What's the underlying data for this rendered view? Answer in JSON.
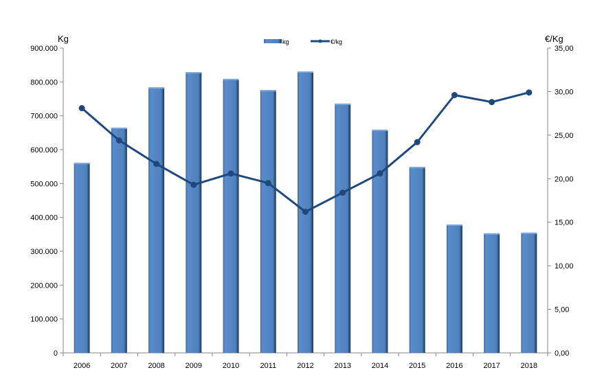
{
  "chart_data": {
    "type": "bar+line",
    "categories": [
      "2006",
      "2007",
      "2008",
      "2009",
      "2010",
      "2011",
      "2012",
      "2013",
      "2014",
      "2015",
      "2016",
      "2017",
      "2018"
    ],
    "series": [
      {
        "name": "kg",
        "type": "bar",
        "axis": "left",
        "color": "#4f81bd",
        "values": [
          561000,
          665000,
          784000,
          829000,
          809000,
          776000,
          831000,
          736000,
          659000,
          549000,
          379000,
          353000,
          355000
        ]
      },
      {
        "name": "€/kg",
        "type": "line",
        "axis": "right",
        "color": "#1f497d",
        "values": [
          28.1,
          24.4,
          21.7,
          19.3,
          20.6,
          19.5,
          16.2,
          18.4,
          20.6,
          24.2,
          29.6,
          28.8,
          29.9
        ]
      }
    ],
    "y_left": {
      "label": "Kg",
      "ylim": [
        0,
        900000
      ],
      "ticks": [
        "0",
        "100.000",
        "200.000",
        "300.000",
        "400.000",
        "500.000",
        "600.000",
        "700.000",
        "800.000",
        "900.000"
      ]
    },
    "y_right": {
      "label": "€/Kg",
      "ylim": [
        0,
        35
      ],
      "ticks": [
        "0,00",
        "5,00",
        "10,00",
        "15,00",
        "20,00",
        "25,00",
        "30,00",
        "35,00"
      ]
    },
    "grid": false,
    "legend": "top-center"
  }
}
